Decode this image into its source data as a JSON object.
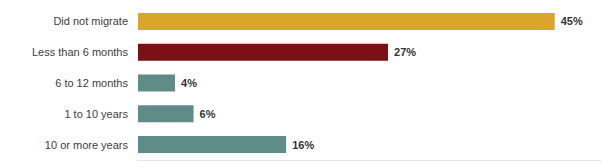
{
  "chart_data": {
    "type": "bar",
    "orientation": "horizontal",
    "categories": [
      "Did not migrate",
      "Less than 6 months",
      "6 to 12 months",
      "1 to 10 years",
      "10 or more years"
    ],
    "values": [
      45,
      27,
      4,
      6,
      16
    ],
    "value_labels": [
      "45%",
      "27%",
      "4%",
      "6%",
      "16%"
    ],
    "colors": [
      "#DAA52B",
      "#7B1116",
      "#5F8C87",
      "#5F8C87",
      "#5F8C87"
    ],
    "xlim": [
      0,
      50
    ],
    "grid": false,
    "data_labels": true,
    "tick_labels": "y"
  }
}
